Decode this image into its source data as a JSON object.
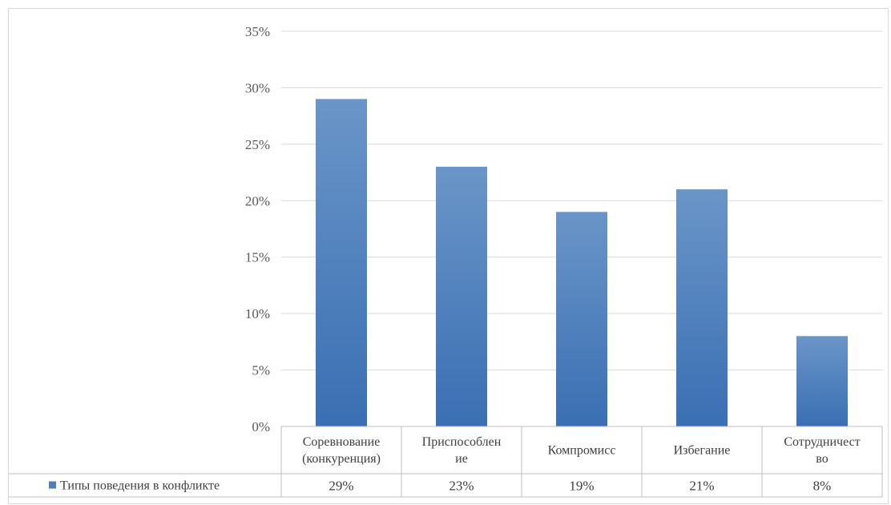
{
  "chart_data": {
    "type": "bar",
    "categories": [
      [
        "Соревнование",
        "(конкуренция)"
      ],
      [
        "Приспособлен",
        "ие"
      ],
      [
        "Компромисс"
      ],
      [
        "Избегание"
      ],
      [
        "Сотрудничест",
        "во"
      ]
    ],
    "series": [
      {
        "name": "Типы поведения в конфликте",
        "values": [
          29,
          23,
          19,
          21,
          8
        ],
        "labels": [
          "29%",
          "23%",
          "19%",
          "21%",
          "8%"
        ],
        "color": "#4a7ebf"
      }
    ],
    "yticks": [
      "0%",
      "5%",
      "10%",
      "15%",
      "20%",
      "25%",
      "30%",
      "35%"
    ],
    "ylim": [
      0,
      35
    ],
    "grid": true,
    "data_table": true,
    "legend_position": "data-table-left"
  }
}
